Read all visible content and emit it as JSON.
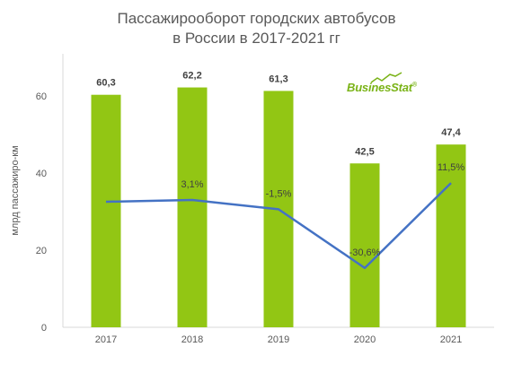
{
  "colors": {
    "bar": "#92c614",
    "line": "#4472c4",
    "axis": "#d9d9d9",
    "logo": "#7ab317"
  },
  "logo": {
    "text": "BusinesStat",
    "registered": "®"
  },
  "chart_data": {
    "type": "bar",
    "title": [
      "Пассажирооборот городских автобусов",
      "в России в 2017-2021 гг"
    ],
    "ylabel": "млрд пассажиро-км",
    "xlabel": "",
    "ylim": [
      0,
      60
    ],
    "yticks": [
      0,
      20,
      40,
      60
    ],
    "grid": false,
    "categories": [
      "2017",
      "2018",
      "2019",
      "2020",
      "2021"
    ],
    "series": [
      {
        "kind": "bar",
        "values": [
          60.3,
          62.2,
          61.3,
          42.5,
          47.4
        ],
        "labels": [
          "60,3",
          "62,2",
          "61,3",
          "42,5",
          "47,4"
        ]
      },
      {
        "kind": "line",
        "values": [
          null,
          3.1,
          -1.5,
          -30.6,
          11.5
        ],
        "labels": [
          "",
          "3,1%",
          "-1,5%",
          "-30,6%",
          "11,5%"
        ]
      }
    ]
  }
}
